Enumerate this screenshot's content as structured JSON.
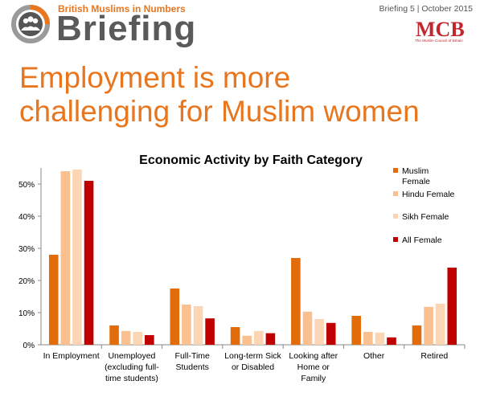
{
  "header": {
    "brand_small": "British Muslims in Numbers",
    "brand_big": "Briefing",
    "issue": "Briefing 5 | October 2015",
    "mcb_text": "MCB",
    "mcb_subtitle": "The Muslim Council of Britain",
    "logo_icon": "people-group-icon"
  },
  "headline": {
    "line1": "Employment is more",
    "line2": "challenging for Muslim women"
  },
  "colors": {
    "accent": "#e8761e",
    "brand_grey": "#5a5a5a",
    "mcb_red": "#c1272d"
  },
  "chart_data": {
    "type": "bar",
    "title": "Economic Activity by Faith Category",
    "xlabel": "",
    "ylabel": "",
    "ylim": [
      0,
      55
    ],
    "yticks": [
      0,
      10,
      20,
      30,
      40,
      50
    ],
    "ytick_labels": [
      "0%",
      "10%",
      "20%",
      "30%",
      "40%",
      "50%"
    ],
    "grid": false,
    "legend_position": "right",
    "categories": [
      [
        "In Employment"
      ],
      [
        "Unemployed",
        "(excluding full-",
        "time students)"
      ],
      [
        "Full-Time",
        "Students"
      ],
      [
        "Long-term Sick",
        "or Disabled"
      ],
      [
        "Looking after",
        "Home or",
        "Family"
      ],
      [
        "Other"
      ],
      [
        "Retired"
      ]
    ],
    "series": [
      {
        "name": "Muslim Female",
        "legend_lines": [
          "Muslim",
          "Female"
        ],
        "color": "#e36c0a",
        "values": [
          28,
          6,
          17.5,
          5.5,
          27,
          9,
          6
        ]
      },
      {
        "name": "Hindu Female",
        "legend_lines": [
          "Hindu Female"
        ],
        "color": "#fac090",
        "values": [
          54,
          4.3,
          12.5,
          2.8,
          10.3,
          4,
          11.8
        ]
      },
      {
        "name": "Sikh Female",
        "legend_lines": [
          "Sikh Female"
        ],
        "color": "#fcd5b5",
        "values": [
          54.5,
          4,
          12,
          4.3,
          8,
          3.8,
          12.8
        ]
      },
      {
        "name": "All Female",
        "legend_lines": [
          "All Female"
        ],
        "color": "#c00000",
        "values": [
          51,
          3,
          8.2,
          3.6,
          6.8,
          2.3,
          24
        ]
      }
    ]
  }
}
